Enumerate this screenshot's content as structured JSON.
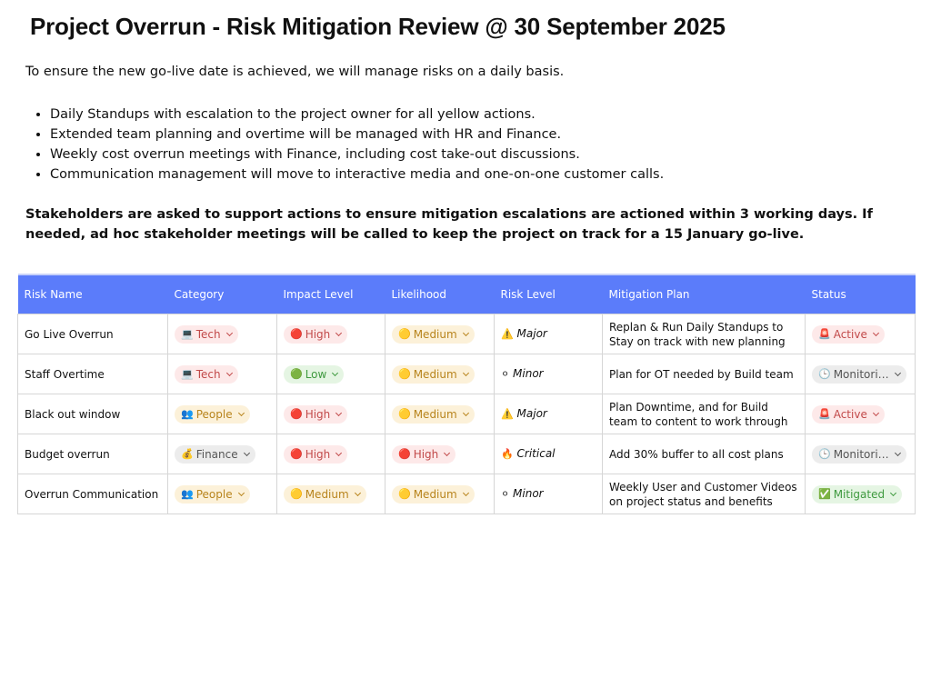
{
  "header": {
    "title": "Project Overrun - Risk Mitigation Review @ 30 September 2025"
  },
  "intro": "To ensure the new go-live date is achieved, we will manage risks on a daily basis.",
  "bullets": [
    "Daily Standups with escalation to the project owner for all yellow actions.",
    "Extended team planning and overtime will be managed with HR and Finance.",
    "Weekly cost overrun meetings with Finance, including cost take-out discussions.",
    "Communication management will move to interactive media and one-on-one customer calls."
  ],
  "closing": "Stakeholders are asked to support actions to ensure mitigation escalations are actioned within 3 working days. If needed, ad hoc stakeholder meetings will be called to keep the project on track for a 15 January go-live.",
  "table": {
    "columns": [
      "Risk Name",
      "Category",
      "Impact Level",
      "Likelihood",
      "Risk Level",
      "Mitigation Plan",
      "Status"
    ],
    "rows": [
      [
        "Go Live Overrun",
        {
          "icon": "💻",
          "text": "Tech",
          "color": "red"
        },
        {
          "icon": "🔴",
          "text": "High",
          "color": "red"
        },
        {
          "icon": "🟡",
          "text": "Medium",
          "color": "yellow"
        },
        {
          "icon": "⚠️",
          "text": "Major"
        },
        "Replan & Run Daily Standups to Stay on track with new planning",
        {
          "icon": "🚨",
          "text": "Active",
          "color": "red"
        }
      ],
      [
        "Staff Overtime",
        {
          "icon": "💻",
          "text": "Tech",
          "color": "red"
        },
        {
          "icon": "🟢",
          "text": "Low",
          "color": "green"
        },
        {
          "icon": "🟡",
          "text": "Medium",
          "color": "yellow"
        },
        {
          "icon": "⚪",
          "text": "Minor"
        },
        "Plan for OT needed by Build team",
        {
          "icon": "🕒",
          "text": "Monitori…",
          "color": "grey"
        }
      ],
      [
        "Black out window",
        {
          "icon": "👥",
          "text": "People",
          "color": "yellow"
        },
        {
          "icon": "🔴",
          "text": "High",
          "color": "red"
        },
        {
          "icon": "🟡",
          "text": "Medium",
          "color": "yellow"
        },
        {
          "icon": "⚠️",
          "text": "Major"
        },
        "Plan Downtime, and for Build team to content to work through",
        {
          "icon": "🚨",
          "text": "Active",
          "color": "red"
        }
      ],
      [
        "Budget overrun",
        {
          "icon": "💰",
          "text": "Finance",
          "color": "grey"
        },
        {
          "icon": "🔴",
          "text": "High",
          "color": "red"
        },
        {
          "icon": "🔴",
          "text": "High",
          "color": "red"
        },
        {
          "icon": "🔥",
          "text": "Critical"
        },
        "Add 30% buffer to all cost plans",
        {
          "icon": "🕒",
          "text": "Monitori…",
          "color": "grey"
        }
      ],
      [
        "Overrun Communication",
        {
          "icon": "👥",
          "text": "People",
          "color": "yellow"
        },
        {
          "icon": "🟡",
          "text": "Medium",
          "color": "yellow"
        },
        {
          "icon": "🟡",
          "text": "Medium",
          "color": "yellow"
        },
        {
          "icon": "⚪",
          "text": "Minor"
        },
        "Weekly User and Customer Videos on project status and benefits",
        {
          "icon": "✅",
          "text": "Mitigated",
          "color": "green"
        }
      ]
    ]
  }
}
